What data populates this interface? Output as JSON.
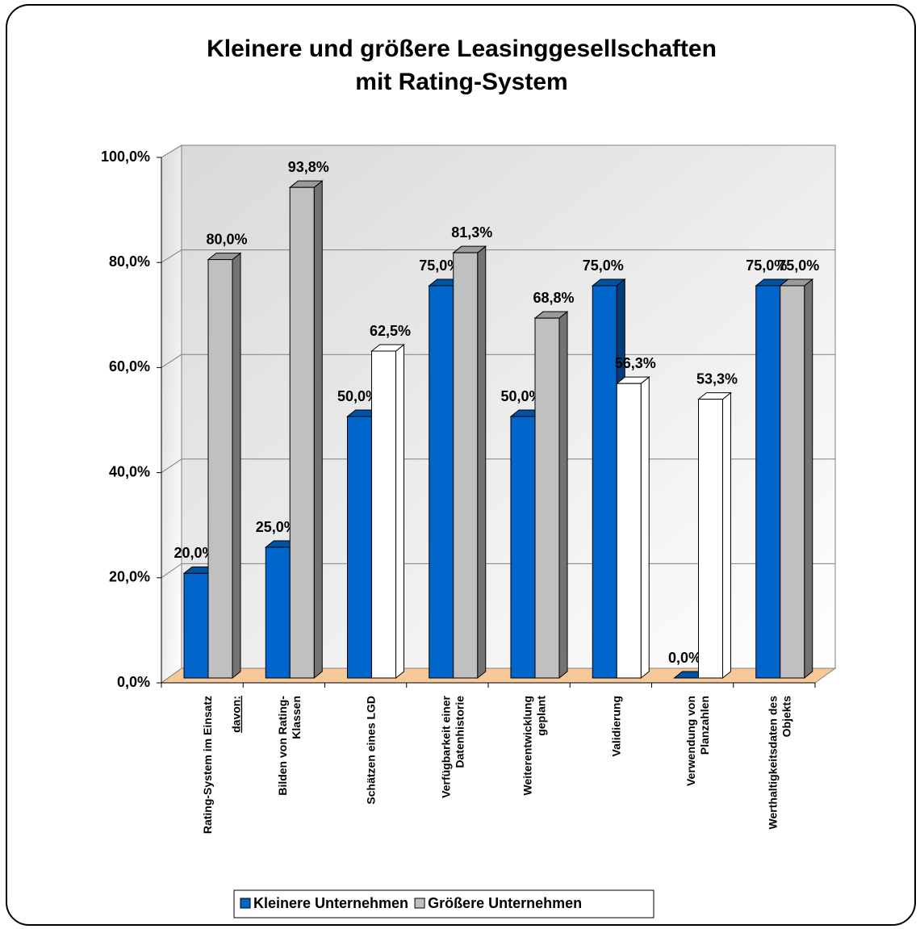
{
  "chart_data": {
    "type": "bar3d",
    "title": "Kleinere und größere Leasinggesellschaften",
    "subtitle": "mit Rating-System",
    "annotation": "davon:",
    "categories": [
      "Rating-System im Einsatz",
      "Bilden von Rating-\nKlassen",
      "Schätzen eines LGD",
      "Verfügbarkeit einer\nDatenhistorie",
      "Weiterentwicklung\ngeplant",
      "Validierung",
      "Verwendung von\nPlanzahlen",
      "Werthaltigkeitsdaten des\nObjekts"
    ],
    "series": [
      {
        "name": "Kleinere Unternehmen",
        "color": "#0066cc",
        "values": [
          20,
          25,
          50,
          75,
          50,
          75,
          0,
          75
        ],
        "value_labels": [
          "20,0%",
          "25,0%",
          "50,0%",
          "75,0%",
          "50,0%",
          "75,0%",
          "0,0%",
          "75,0%"
        ]
      },
      {
        "name": "Größere Unternehmen",
        "color": "#c0c0c0",
        "point_colors": [
          "#c0c0c0",
          "#c0c0c0",
          "#ffffff",
          "#c0c0c0",
          "#c0c0c0",
          "#ffffff",
          "#ffffff",
          "#c0c0c0"
        ],
        "values": [
          80,
          93.8,
          62.5,
          81.3,
          68.8,
          56.3,
          53.3,
          75
        ],
        "value_labels": [
          "80,0%",
          "93,8%",
          "62,5%",
          "81,3%",
          "68,8%",
          "56,3%",
          "53,3%",
          "75,0%"
        ]
      }
    ],
    "ylim": [
      0,
      100
    ],
    "yticks": [
      {
        "value": 0,
        "label": "0,0%"
      },
      {
        "value": 20,
        "label": "20,0%"
      },
      {
        "value": 40,
        "label": "40,0%"
      },
      {
        "value": 60,
        "label": "60,0%"
      },
      {
        "value": 80,
        "label": "80,0%"
      },
      {
        "value": 100,
        "label": "100,0%"
      }
    ],
    "grid": true,
    "legend": "bottom"
  }
}
